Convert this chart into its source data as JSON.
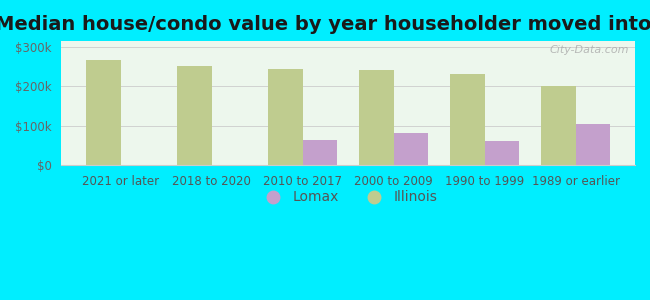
{
  "title": "Median house/condo value by year householder moved into unit",
  "categories": [
    "2021 or later",
    "2018 to 2020",
    "2010 to 2017",
    "2000 to 2009",
    "1990 to 1999",
    "1989 or earlier"
  ],
  "lomax_values": [
    null,
    null,
    63000,
    80000,
    62000,
    103000
  ],
  "illinois_values": [
    268000,
    252000,
    244000,
    242000,
    232000,
    200000
  ],
  "lomax_color": "#c4a0cc",
  "illinois_color": "#bfcc8f",
  "background_outer": "#00eeff",
  "background_inner_top": "#e8f5e8",
  "background_inner_bottom": "#f8fff8",
  "yticks": [
    0,
    100000,
    200000,
    300000
  ],
  "ylim": [
    0,
    315000
  ],
  "ylabel_labels": [
    "$0",
    "$100k",
    "$200k",
    "$300k"
  ],
  "watermark": "City-Data.com",
  "title_fontsize": 14,
  "tick_fontsize": 8.5,
  "legend_fontsize": 10
}
